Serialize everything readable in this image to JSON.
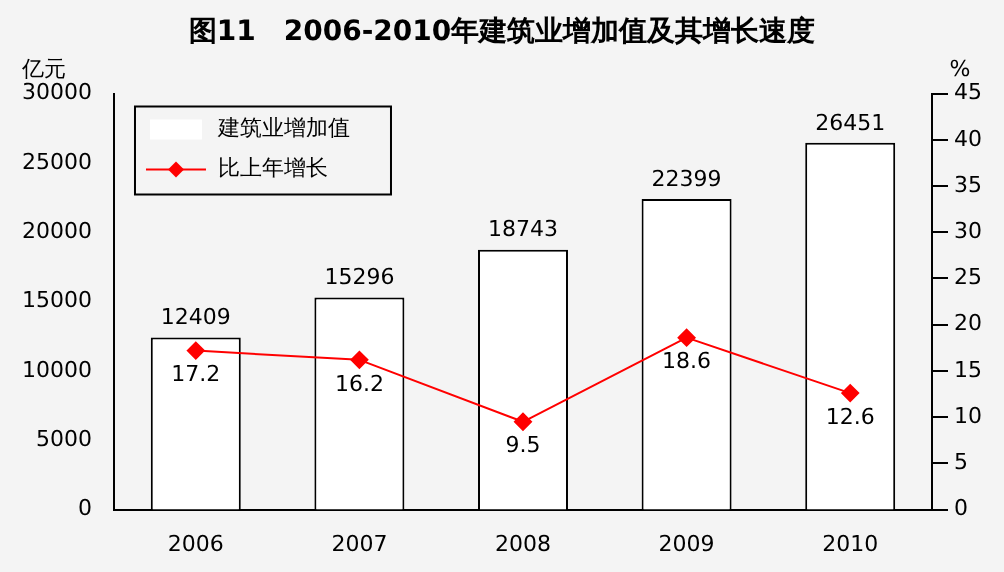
{
  "chart_data": {
    "type": "bar",
    "title": "图11　2006-2010年建筑业增加值及其增长速度",
    "ylabel": "亿元",
    "y2label": "%",
    "categories": [
      "2006",
      "2007",
      "2008",
      "2009",
      "2010"
    ],
    "series": [
      {
        "name": "建筑业增加值",
        "color": "#ffffff",
        "values": [
          12409,
          15296,
          18743,
          22399,
          26451
        ]
      },
      {
        "name": "比上年增长",
        "type": "line",
        "axis": "y2",
        "color": "#ff0000",
        "values": [
          17.2,
          16.2,
          9.5,
          18.6,
          12.6
        ],
        "marker": "diamond"
      }
    ],
    "ylim": [
      0,
      30000
    ],
    "yticks": [
      0,
      5000,
      10000,
      15000,
      20000,
      25000,
      30000
    ],
    "y2lim": [
      0,
      45
    ],
    "y2ticks": [
      0,
      5,
      10,
      15,
      20,
      25,
      30,
      35,
      40,
      45
    ],
    "data_labels": true,
    "legend": "top left",
    "grid": false
  }
}
